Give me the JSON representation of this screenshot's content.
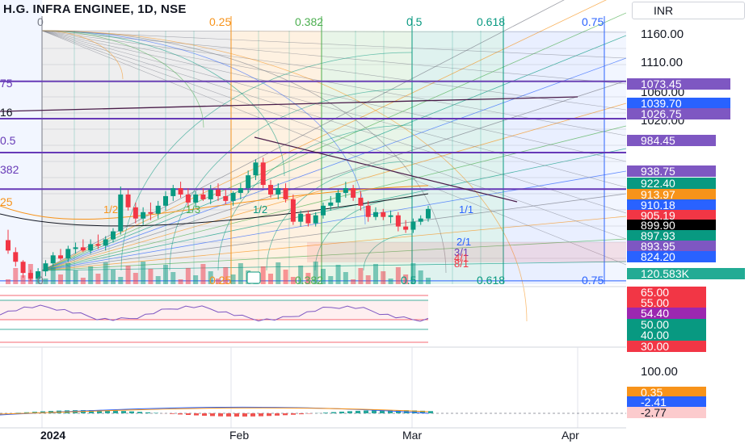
{
  "header": {
    "title": "H.G. INFRA ENGINEE, 1D, NSE",
    "currency": "INR"
  },
  "colors": {
    "bullish": "#089981",
    "bearish": "#f23645",
    "fib_grey": "#787b86",
    "fib_orange": "#f7931a",
    "fib_green": "#089981",
    "fib_blue": "#2962ff",
    "purple": "#673ab7",
    "level_purple": "#7e57c2"
  },
  "fib_levels": [
    "0",
    "0.25",
    "0.382",
    "0.5",
    "0.618",
    "0.75"
  ],
  "fib_bottom_levels": [
    "0",
    "0.25",
    "0.382",
    "0.5",
    "0.618",
    "0.75"
  ],
  "fan_labels": [
    "1/2",
    "1/3",
    "1/2",
    "1/1",
    "2/1",
    "3/1",
    "4/1",
    "8/1"
  ],
  "left_cut_labels": [
    "75",
    "16",
    "0.5",
    "382",
    "25"
  ],
  "price_axis": {
    "ticks": [
      "1160.00",
      "1110.00",
      "1060.00",
      "1020.00"
    ]
  },
  "price_tags": [
    {
      "text": "1073.45",
      "color": "#7e57c2"
    },
    {
      "text": "1039.70",
      "color": "#2962ff"
    },
    {
      "text": "1026.75",
      "color": "#7e57c2"
    },
    {
      "text": "984.45",
      "color": "#7e57c2"
    },
    {
      "text": "938.75",
      "color": "#7e57c2"
    },
    {
      "text": "922.40",
      "color": "#089981"
    },
    {
      "text": "913.97",
      "color": "#f7931a"
    },
    {
      "text": "910.18",
      "color": "#2962ff"
    },
    {
      "text": "905.19",
      "color": "#f23645"
    },
    {
      "text": "899.90",
      "color": "#000000"
    },
    {
      "text": "897.93",
      "color": "#089981"
    },
    {
      "text": "893.95",
      "color": "#7e57c2"
    },
    {
      "text": "824.20",
      "color": "#2962ff"
    },
    {
      "text": "120.583K",
      "color": "#22ab94"
    }
  ],
  "indicator_axis": {
    "rsi_tags": [
      {
        "text": "65.00",
        "color": "#f23645"
      },
      {
        "text": "55.00",
        "color": "#f23645"
      },
      {
        "text": "54.40",
        "color": "#9c27b0"
      },
      {
        "text": "50.00",
        "color": "#089981"
      },
      {
        "text": "40.00",
        "color": "#089981"
      },
      {
        "text": "30.00",
        "color": "#f23645"
      }
    ],
    "macd_tick": "100.00",
    "macd_tags": [
      {
        "text": "0.35",
        "color": "#f7931a"
      },
      {
        "text": "-2.41",
        "color": "#2962ff"
      },
      {
        "text": "-2.77",
        "color": "#fccbcd"
      }
    ]
  },
  "time_axis": [
    "2024",
    "Feb",
    "Mar",
    "Apr"
  ],
  "chart_data": {
    "type": "candlestick",
    "title": "H.G. INFRA ENGINEE, 1D, NSE",
    "currency": "INR",
    "y_range": [
      820,
      1175
    ],
    "candles": [
      {
        "o": 875,
        "h": 888,
        "l": 858,
        "c": 862
      },
      {
        "o": 860,
        "h": 866,
        "l": 842,
        "c": 848
      },
      {
        "o": 848,
        "h": 850,
        "l": 828,
        "c": 834
      },
      {
        "o": 834,
        "h": 838,
        "l": 824,
        "c": 827
      },
      {
        "o": 827,
        "h": 840,
        "l": 822,
        "c": 836
      },
      {
        "o": 836,
        "h": 850,
        "l": 830,
        "c": 846
      },
      {
        "o": 846,
        "h": 860,
        "l": 842,
        "c": 856
      },
      {
        "o": 856,
        "h": 864,
        "l": 850,
        "c": 852
      },
      {
        "o": 852,
        "h": 868,
        "l": 848,
        "c": 864
      },
      {
        "o": 864,
        "h": 872,
        "l": 858,
        "c": 866
      },
      {
        "o": 866,
        "h": 876,
        "l": 860,
        "c": 862
      },
      {
        "o": 862,
        "h": 876,
        "l": 858,
        "c": 870
      },
      {
        "o": 870,
        "h": 882,
        "l": 864,
        "c": 868
      },
      {
        "o": 868,
        "h": 880,
        "l": 862,
        "c": 876
      },
      {
        "o": 876,
        "h": 890,
        "l": 872,
        "c": 886
      },
      {
        "o": 886,
        "h": 942,
        "l": 882,
        "c": 932
      },
      {
        "o": 932,
        "h": 938,
        "l": 912,
        "c": 916
      },
      {
        "o": 916,
        "h": 922,
        "l": 896,
        "c": 902
      },
      {
        "o": 902,
        "h": 916,
        "l": 894,
        "c": 910
      },
      {
        "o": 910,
        "h": 922,
        "l": 900,
        "c": 908
      },
      {
        "o": 908,
        "h": 924,
        "l": 902,
        "c": 918
      },
      {
        "o": 918,
        "h": 936,
        "l": 912,
        "c": 930
      },
      {
        "o": 930,
        "h": 944,
        "l": 924,
        "c": 940
      },
      {
        "o": 940,
        "h": 948,
        "l": 928,
        "c": 932
      },
      {
        "o": 932,
        "h": 940,
        "l": 916,
        "c": 922
      },
      {
        "o": 922,
        "h": 936,
        "l": 916,
        "c": 932
      },
      {
        "o": 932,
        "h": 940,
        "l": 924,
        "c": 926
      },
      {
        "o": 926,
        "h": 944,
        "l": 920,
        "c": 938
      },
      {
        "o": 938,
        "h": 946,
        "l": 924,
        "c": 930
      },
      {
        "o": 930,
        "h": 938,
        "l": 920,
        "c": 924
      },
      {
        "o": 924,
        "h": 936,
        "l": 918,
        "c": 934
      },
      {
        "o": 934,
        "h": 946,
        "l": 926,
        "c": 940
      },
      {
        "o": 940,
        "h": 962,
        "l": 934,
        "c": 956
      },
      {
        "o": 956,
        "h": 976,
        "l": 950,
        "c": 972
      },
      {
        "o": 972,
        "h": 978,
        "l": 940,
        "c": 944
      },
      {
        "o": 944,
        "h": 950,
        "l": 928,
        "c": 932
      },
      {
        "o": 932,
        "h": 946,
        "l": 926,
        "c": 940
      },
      {
        "o": 940,
        "h": 946,
        "l": 922,
        "c": 926
      },
      {
        "o": 926,
        "h": 932,
        "l": 894,
        "c": 898
      },
      {
        "o": 898,
        "h": 912,
        "l": 892,
        "c": 908
      },
      {
        "o": 908,
        "h": 912,
        "l": 892,
        "c": 896
      },
      {
        "o": 896,
        "h": 910,
        "l": 892,
        "c": 906
      },
      {
        "o": 906,
        "h": 922,
        "l": 902,
        "c": 918
      },
      {
        "o": 918,
        "h": 930,
        "l": 912,
        "c": 922
      },
      {
        "o": 922,
        "h": 938,
        "l": 916,
        "c": 934
      },
      {
        "o": 934,
        "h": 948,
        "l": 928,
        "c": 940
      },
      {
        "o": 940,
        "h": 944,
        "l": 924,
        "c": 928
      },
      {
        "o": 928,
        "h": 936,
        "l": 912,
        "c": 918
      },
      {
        "o": 918,
        "h": 924,
        "l": 898,
        "c": 904
      },
      {
        "o": 904,
        "h": 916,
        "l": 900,
        "c": 910
      },
      {
        "o": 910,
        "h": 914,
        "l": 900,
        "c": 904
      },
      {
        "o": 904,
        "h": 912,
        "l": 896,
        "c": 906
      },
      {
        "o": 906,
        "h": 910,
        "l": 886,
        "c": 892
      },
      {
        "o": 892,
        "h": 900,
        "l": 884,
        "c": 888
      },
      {
        "o": 888,
        "h": 902,
        "l": 884,
        "c": 898
      },
      {
        "o": 898,
        "h": 906,
        "l": 894,
        "c": 902
      },
      {
        "o": 902,
        "h": 918,
        "l": 898,
        "c": 914
      }
    ],
    "indicators": {
      "rsi_value": 54.4,
      "macd": 0.35,
      "signal": -2.41,
      "histogram": -2.77,
      "volume_last": "120.583K"
    }
  }
}
